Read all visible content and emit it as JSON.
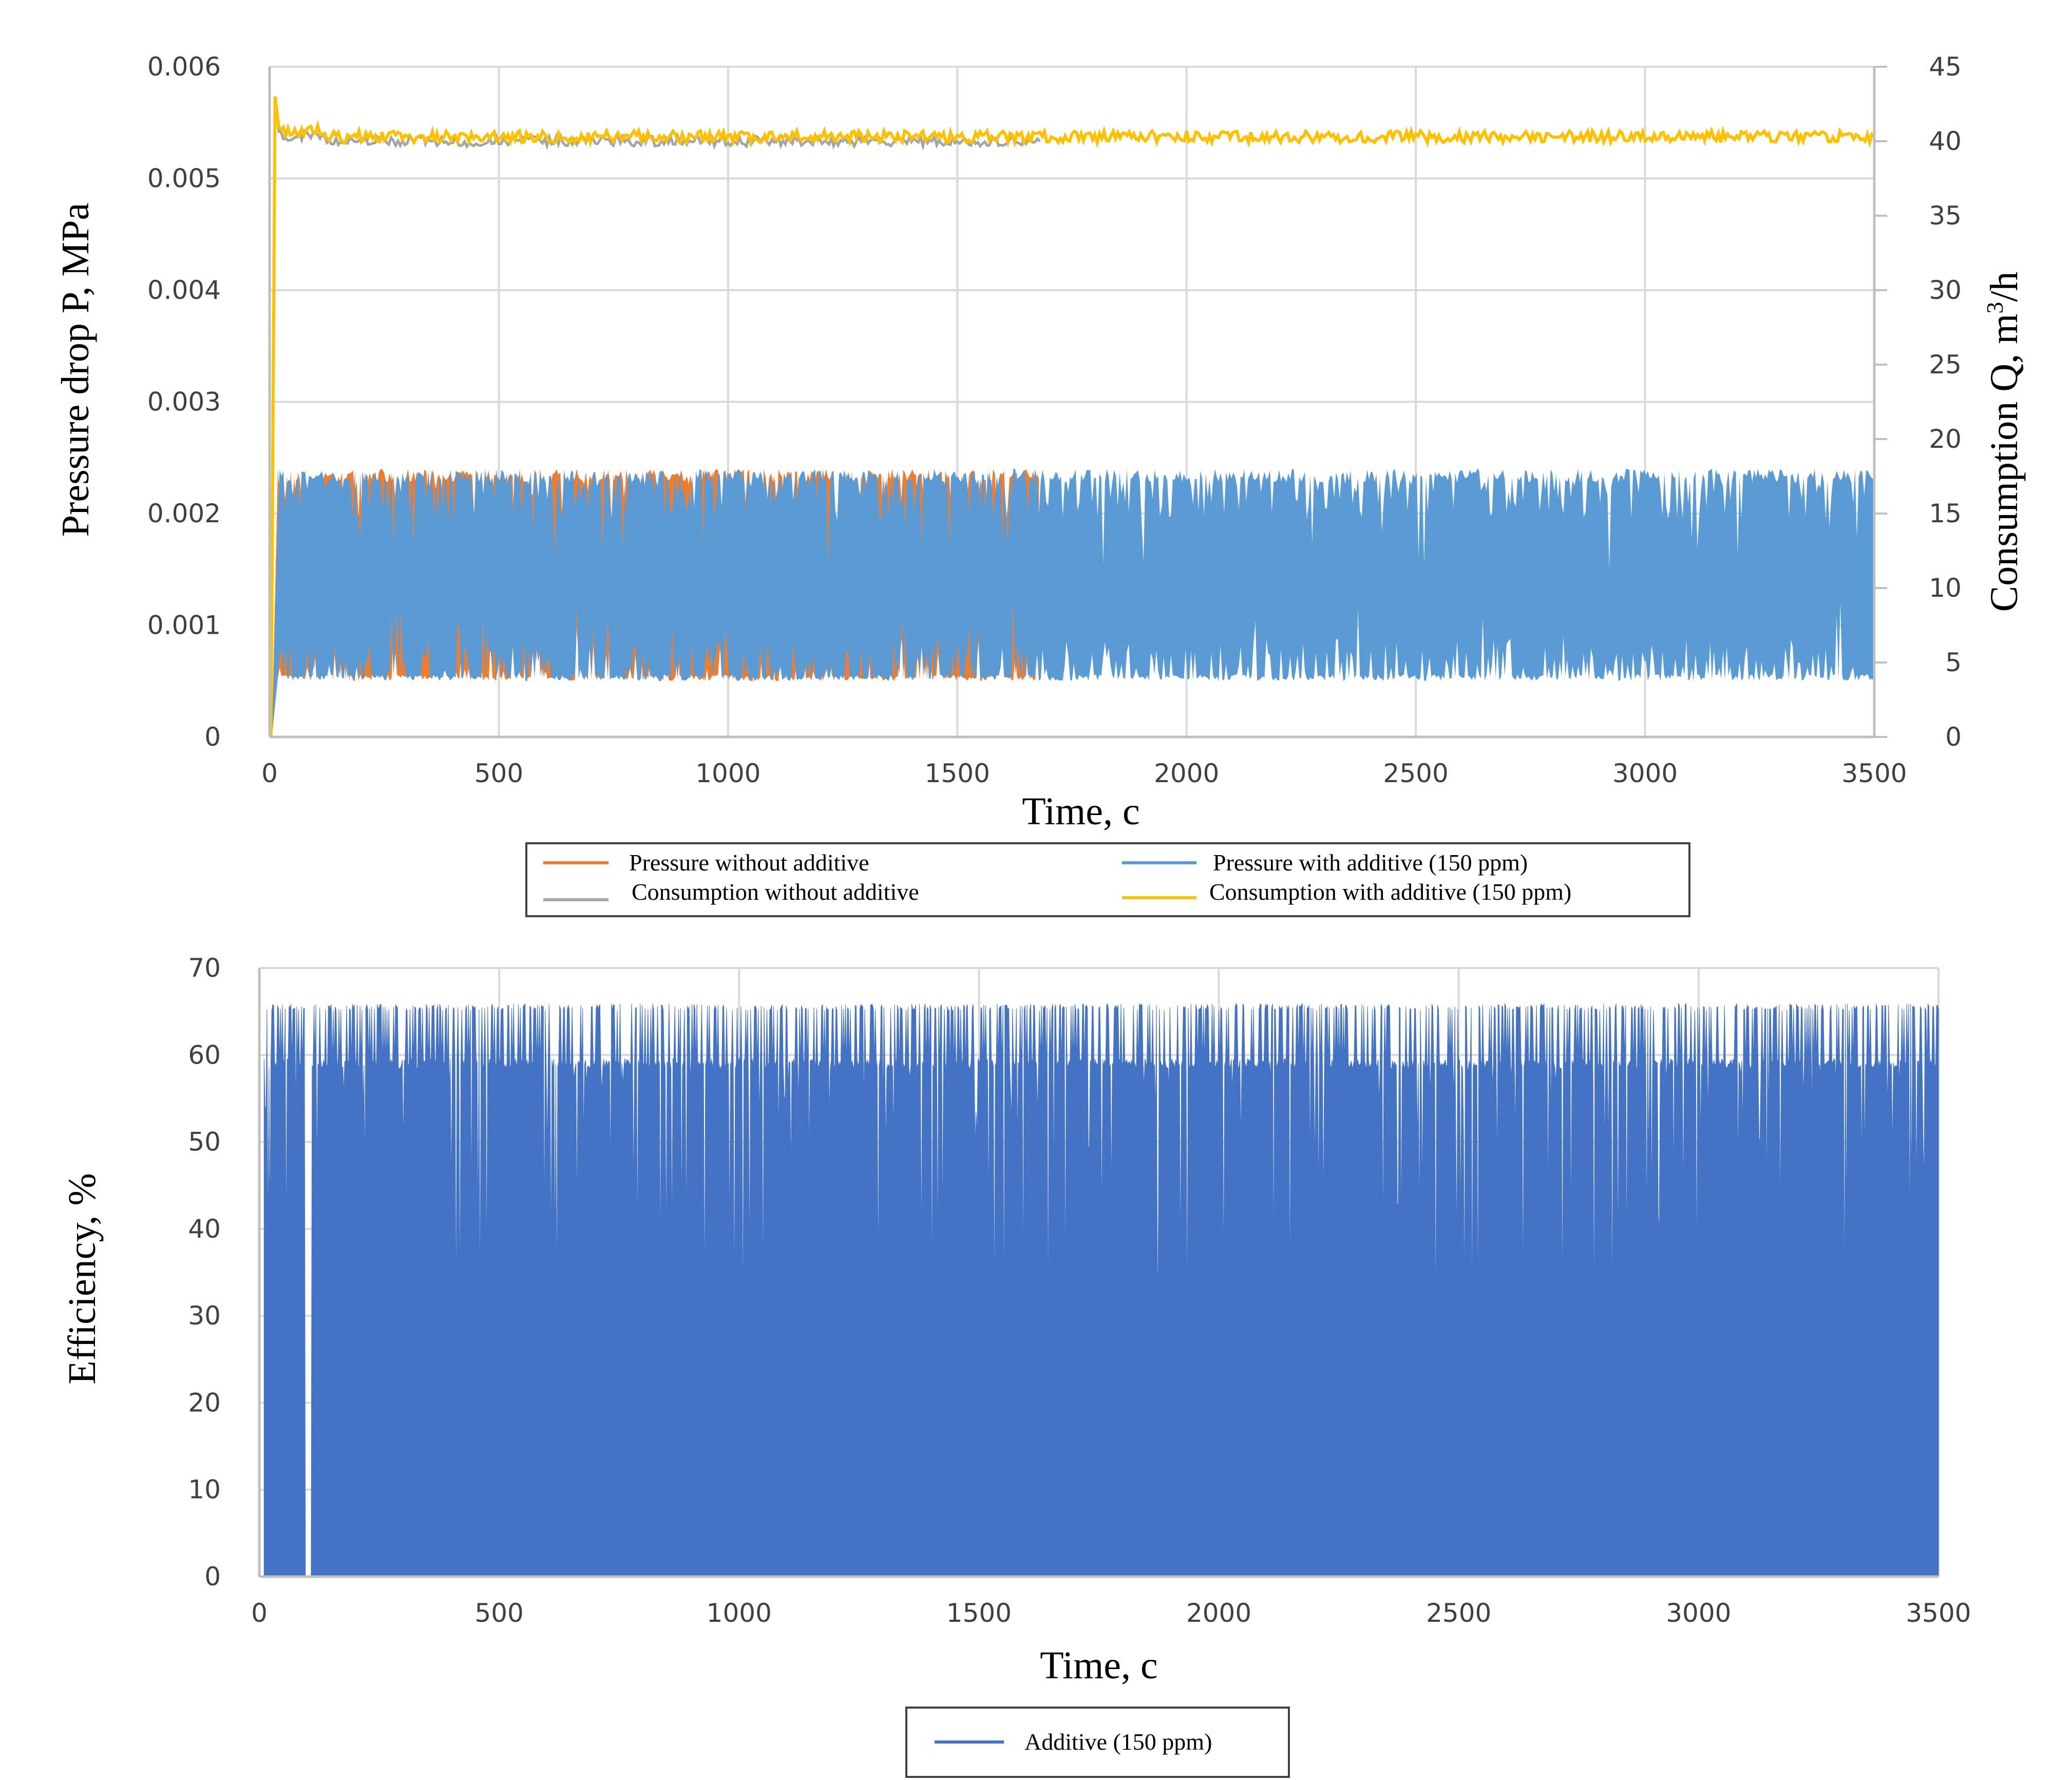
{
  "chart_data": [
    {
      "type": "line",
      "xlabel": "Time, c",
      "ylabel": "Pressure drop P, MPa",
      "y2label_main": "Consumption Q, m",
      "y2label_sup": "3",
      "y2label_tail": "/h",
      "xlim": [
        0,
        3500
      ],
      "ylim": [
        0,
        0.006
      ],
      "y2lim": [
        0,
        45
      ],
      "xticks": [
        "0",
        "500",
        "1000",
        "1500",
        "2000",
        "2500",
        "3000",
        "3500"
      ],
      "yticks": [
        "0",
        "0.001",
        "0.002",
        "0.003",
        "0.004",
        "0.005",
        "0.006"
      ],
      "y2ticks": [
        "0",
        "5",
        "10",
        "15",
        "20",
        "25",
        "30",
        "35",
        "40",
        "45"
      ],
      "grid": true,
      "legend_position": "bottom",
      "series": [
        {
          "name": "Pressure without additive",
          "axis": "left",
          "color": "#ED7D31",
          "x_range": [
            0,
            1680
          ],
          "band": [
            0.0005,
            0.0024
          ],
          "level": 0.0014
        },
        {
          "name": "Pressure with additive (150 ppm)",
          "axis": "left",
          "color": "#5B9BD5",
          "x_range": [
            0,
            3500
          ],
          "band": [
            0.0005,
            0.0024
          ],
          "level": 0.0014
        },
        {
          "name": "Consumption without additive",
          "axis": "right",
          "color": "#A5A5A5",
          "x_range": [
            0,
            1680
          ],
          "level": 40
        },
        {
          "name": "Consumption with additive (150 ppm)",
          "axis": "right",
          "color": "#FFC000",
          "x_range": [
            0,
            3500
          ],
          "level": 40.3
        }
      ]
    },
    {
      "type": "area",
      "xlabel": "Time, c",
      "ylabel": "Efficiency, %",
      "xlim": [
        0,
        3500
      ],
      "ylim": [
        0,
        70
      ],
      "xticks": [
        "0",
        "500",
        "1000",
        "1500",
        "2000",
        "2500",
        "3000",
        "3500"
      ],
      "yticks": [
        "0",
        "10",
        "20",
        "30",
        "40",
        "50",
        "60",
        "70"
      ],
      "grid": true,
      "legend_position": "bottom",
      "series": [
        {
          "name": "Additive (150 ppm)",
          "color": "#4472C4",
          "x_range": [
            10,
            3500
          ],
          "typical_levels": [
            59,
            65.5
          ],
          "min_dips": [
            25,
            32,
            38,
            45,
            52
          ]
        }
      ]
    }
  ]
}
